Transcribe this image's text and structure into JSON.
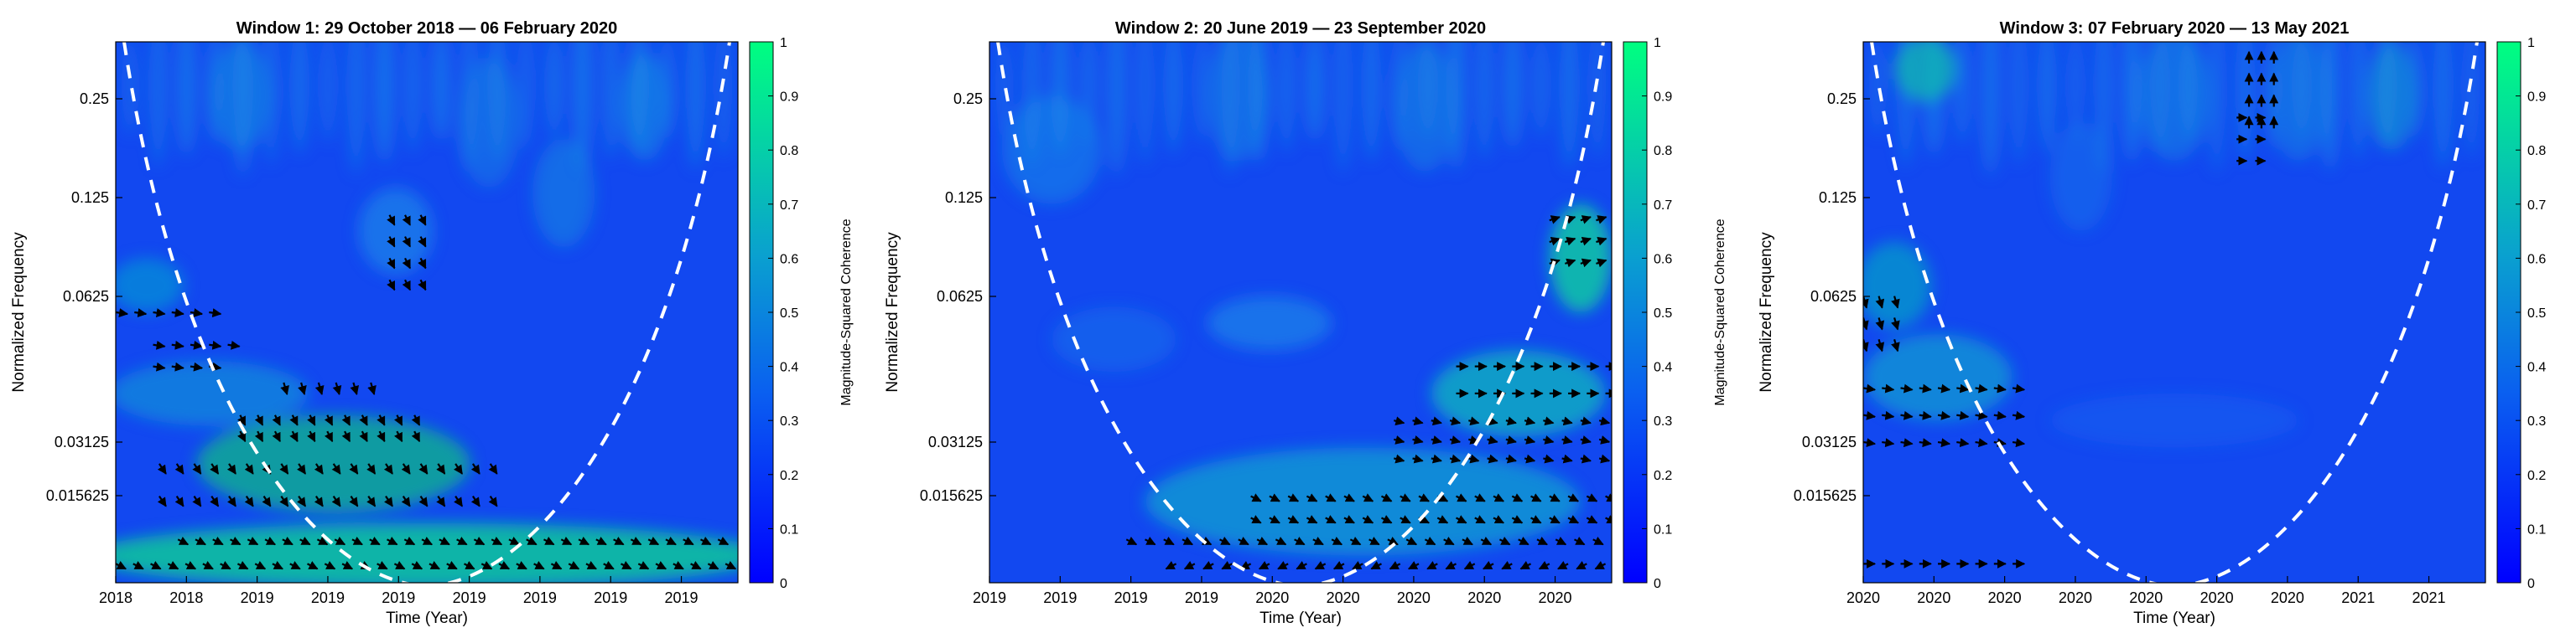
{
  "chart_data": [
    {
      "type": "heatmap",
      "title": "Window 1: 29 October 2018 — 06 February 2020",
      "xlabel": "Time (Year)",
      "ylabel": "Normalized Frequency",
      "x_tick_labels": [
        "2018",
        "2018",
        "2019",
        "2019",
        "2019",
        "2019",
        "2019",
        "2019",
        "2019"
      ],
      "y_tick_labels": [
        "0.25",
        "0.125",
        "0.0625",
        "0.03125",
        "0.015625"
      ],
      "colorbar": {
        "label": "Magnitude-Squared Coherence",
        "ticks": [
          "0",
          "0.1",
          "0.2",
          "0.3",
          "0.4",
          "0.5",
          "0.6",
          "0.7",
          "0.8",
          "0.9",
          "1"
        ],
        "range": [
          0,
          1
        ]
      },
      "cone_of_influence": "white-dashed",
      "grid": false
    },
    {
      "type": "heatmap",
      "title": "Window 2: 20 June 2019 — 23 September 2020",
      "xlabel": "Time (Year)",
      "ylabel": "Normalized Frequency",
      "x_tick_labels": [
        "2019",
        "2019",
        "2019",
        "2019",
        "2020",
        "2020",
        "2020",
        "2020",
        "2020"
      ],
      "y_tick_labels": [
        "0.25",
        "0.125",
        "0.0625",
        "0.03125",
        "0.015625"
      ],
      "colorbar": {
        "label": "Magnitude-Squared Coherence",
        "ticks": [
          "0",
          "0.1",
          "0.2",
          "0.3",
          "0.4",
          "0.5",
          "0.6",
          "0.7",
          "0.8",
          "0.9",
          "1"
        ],
        "range": [
          0,
          1
        ]
      },
      "cone_of_influence": "white-dashed",
      "grid": false
    },
    {
      "type": "heatmap",
      "title": "Window 3: 07 February 2020 — 13 May 2021",
      "xlabel": "Time (Year)",
      "ylabel": "Normalized Frequency",
      "x_tick_labels": [
        "2020",
        "2020",
        "2020",
        "2020",
        "2020",
        "2020",
        "2020",
        "2021",
        "2021"
      ],
      "y_tick_labels": [
        "0.25",
        "0.125",
        "0.0625",
        "0.03125",
        "0.015625"
      ],
      "colorbar": {
        "label": "Magnitude-Squared Coherence",
        "ticks": [
          "0",
          "0.1",
          "0.2",
          "0.3",
          "0.4",
          "0.5",
          "0.6",
          "0.7",
          "0.8",
          "0.9",
          "1"
        ],
        "range": [
          0,
          1
        ]
      },
      "cone_of_influence": "white-dashed",
      "grid": false
    }
  ],
  "colors": {
    "low": "#0a0aff",
    "mid": "#1a6fe6",
    "high": "#00e37a",
    "cone": "#ffffff",
    "arrow": "#000000"
  }
}
